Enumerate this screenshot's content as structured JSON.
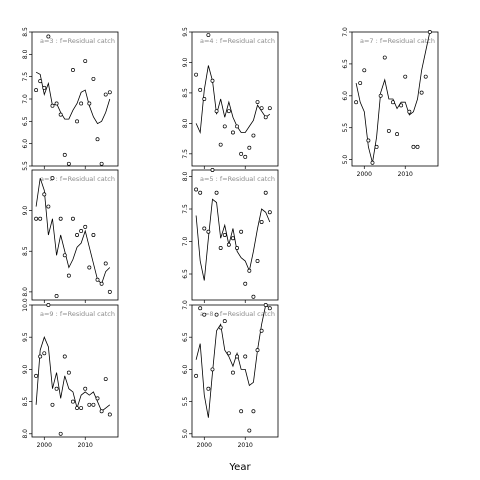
{
  "figure": {
    "xlabel": "Year"
  },
  "chart_data": {
    "type": "scatter",
    "xlabel": "Year",
    "xlim": [
      1997,
      2018
    ],
    "xticks": [
      2000,
      2010
    ],
    "panels": [
      {
        "label": "a=3 : f=Residual catch",
        "ylim": [
          5.5,
          8.5
        ],
        "yticks": [
          5.5,
          6.0,
          6.5,
          7.0,
          7.5,
          8.0,
          8.5
        ],
        "fitted": {
          "x": [
            1998,
            1999,
            2000,
            2001,
            2002,
            2003,
            2004,
            2005,
            2006,
            2007,
            2008,
            2009,
            2010,
            2011,
            2012,
            2013,
            2014,
            2015,
            2016
          ],
          "y": [
            7.6,
            7.55,
            7.1,
            7.35,
            6.85,
            6.9,
            6.7,
            6.55,
            6.55,
            6.75,
            6.9,
            7.15,
            7.2,
            6.85,
            6.6,
            6.45,
            6.5,
            6.7,
            7.0
          ]
        },
        "observed": {
          "x": [
            1998,
            1999,
            2000,
            2001,
            2002,
            2003,
            2004,
            2005,
            2006,
            2007,
            2008,
            2009,
            2010,
            2011,
            2012,
            2013,
            2014,
            2015,
            2016
          ],
          "y": [
            7.2,
            7.4,
            7.25,
            8.4,
            6.85,
            6.9,
            6.65,
            5.75,
            5.55,
            7.65,
            6.5,
            6.9,
            7.85,
            6.9,
            7.45,
            6.1,
            5.55,
            7.1,
            7.15
          ]
        }
      },
      {
        "label": "a=4 : f=Residual catch",
        "ylim": [
          7.3,
          9.5
        ],
        "yticks": [
          7.5,
          8.0,
          8.5,
          9.0,
          9.5
        ],
        "fitted": {
          "x": [
            1998,
            1999,
            2000,
            2001,
            2002,
            2003,
            2004,
            2005,
            2006,
            2007,
            2008,
            2009,
            2010,
            2011,
            2012,
            2013,
            2014,
            2015,
            2016
          ],
          "y": [
            8.0,
            7.85,
            8.55,
            8.95,
            8.7,
            8.15,
            8.4,
            8.1,
            8.35,
            8.1,
            7.95,
            7.85,
            7.85,
            7.95,
            8.05,
            8.3,
            8.2,
            8.1,
            8.15
          ]
        },
        "observed": {
          "x": [
            1998,
            1999,
            2000,
            2001,
            2002,
            2003,
            2004,
            2005,
            2006,
            2007,
            2008,
            2009,
            2010,
            2011,
            2012,
            2013,
            2014,
            2015,
            2016
          ],
          "y": [
            8.8,
            8.55,
            8.4,
            9.45,
            8.7,
            8.2,
            7.65,
            7.95,
            8.2,
            7.85,
            7.95,
            7.5,
            7.45,
            7.6,
            7.8,
            8.35,
            8.25,
            8.1,
            8.25
          ]
        }
      },
      {
        "label": "a=7 : f=Residual catch",
        "ylim": [
          4.9,
          7.0
        ],
        "yticks": [
          5.0,
          5.5,
          6.0,
          6.5,
          7.0
        ],
        "fitted": {
          "x": [
            1998,
            1999,
            2000,
            2001,
            2002,
            2003,
            2004,
            2005,
            2006,
            2007,
            2008,
            2009,
            2010,
            2011,
            2012,
            2013,
            2014,
            2015,
            2016
          ],
          "y": [
            6.2,
            5.9,
            5.75,
            5.2,
            4.95,
            5.35,
            6.05,
            6.25,
            5.95,
            5.95,
            5.8,
            5.9,
            5.9,
            5.7,
            5.75,
            5.95,
            6.4,
            6.7,
            7.0
          ]
        },
        "observed": {
          "x": [
            1998,
            1999,
            2000,
            2001,
            2002,
            2003,
            2004,
            2005,
            2006,
            2007,
            2008,
            2009,
            2010,
            2011,
            2012,
            2013,
            2014,
            2015,
            2016
          ],
          "y": [
            5.9,
            6.2,
            6.4,
            5.3,
            4.95,
            5.2,
            6.0,
            6.6,
            5.45,
            5.9,
            5.4,
            5.85,
            6.3,
            5.75,
            5.2,
            5.2,
            6.05,
            6.3,
            7.0
          ]
        }
      },
      {
        "label": "a=2 : f=Residual catch",
        "ylim": [
          7.9,
          9.5
        ],
        "yticks": [
          8.0,
          8.5,
          9.0
        ],
        "fitted": {
          "x": [
            1998,
            1999,
            2000,
            2001,
            2002,
            2003,
            2004,
            2005,
            2006,
            2007,
            2008,
            2009,
            2010,
            2011,
            2012,
            2013,
            2014,
            2015,
            2016
          ],
          "y": [
            9.05,
            9.4,
            9.25,
            8.7,
            8.9,
            8.45,
            8.7,
            8.5,
            8.3,
            8.4,
            8.55,
            8.6,
            8.75,
            8.55,
            8.35,
            8.15,
            8.1,
            8.25,
            8.3
          ]
        },
        "observed": {
          "x": [
            1998,
            1999,
            2000,
            2001,
            2002,
            2003,
            2004,
            2005,
            2006,
            2007,
            2008,
            2009,
            2010,
            2011,
            2012,
            2013,
            2014,
            2015,
            2016
          ],
          "y": [
            8.9,
            8.9,
            9.2,
            9.05,
            9.4,
            7.95,
            8.9,
            8.45,
            8.2,
            8.9,
            8.7,
            8.75,
            8.8,
            8.3,
            8.7,
            8.15,
            8.1,
            8.35,
            8.0
          ]
        }
      },
      {
        "label": "a=5 : f=Residual catch",
        "ylim": [
          6.1,
          8.1
        ],
        "yticks": [
          6.5,
          7.0,
          7.5,
          8.0
        ],
        "fitted": {
          "x": [
            1998,
            1999,
            2000,
            2001,
            2002,
            2003,
            2004,
            2005,
            2006,
            2007,
            2008,
            2009,
            2010,
            2011,
            2012,
            2013,
            2014,
            2015,
            2016
          ],
          "y": [
            7.4,
            6.7,
            6.4,
            7.05,
            7.65,
            7.6,
            7.05,
            7.25,
            6.95,
            7.2,
            6.85,
            6.75,
            6.7,
            6.55,
            6.85,
            7.2,
            7.5,
            7.45,
            7.3
          ]
        },
        "observed": {
          "x": [
            1998,
            1999,
            2000,
            2001,
            2002,
            2003,
            2004,
            2005,
            2006,
            2007,
            2008,
            2009,
            2010,
            2011,
            2012,
            2013,
            2014,
            2015,
            2016
          ],
          "y": [
            7.8,
            7.75,
            7.2,
            7.15,
            8.1,
            7.75,
            6.9,
            7.1,
            6.95,
            7.05,
            6.9,
            7.15,
            6.35,
            6.55,
            6.15,
            6.7,
            7.3,
            7.75,
            7.45
          ]
        }
      },
      {
        "label": "a=8 : f=Residual catch",
        "ylim": [
          4.95,
          7.0
        ],
        "yticks": [
          5.0,
          5.5,
          6.0,
          6.5,
          7.0
        ],
        "fitted": {
          "x": [
            1998,
            1999,
            2000,
            2001,
            2002,
            2003,
            2004,
            2005,
            2006,
            2007,
            2008,
            2009,
            2010,
            2011,
            2012,
            2013,
            2014,
            2015,
            2016
          ],
          "y": [
            6.15,
            6.4,
            5.6,
            5.25,
            5.95,
            6.6,
            6.7,
            6.3,
            6.2,
            6.05,
            6.25,
            6.0,
            6.0,
            5.75,
            5.8,
            6.3,
            6.7,
            7.0,
            6.95
          ]
        },
        "observed": {
          "x": [
            1998,
            1999,
            2000,
            2001,
            2002,
            2003,
            2004,
            2005,
            2006,
            2007,
            2008,
            2009,
            2010,
            2011,
            2012,
            2013,
            2014,
            2015,
            2016
          ],
          "y": [
            5.9,
            6.95,
            6.85,
            5.7,
            6.0,
            6.85,
            6.65,
            6.75,
            6.25,
            5.95,
            6.2,
            5.35,
            6.2,
            5.05,
            5.35,
            6.3,
            6.6,
            7.0,
            6.95
          ]
        }
      },
      {
        "label": "a=9 : f=Residual catch",
        "ylim": [
          7.95,
          10.0
        ],
        "yticks": [
          8.0,
          8.5,
          9.0,
          9.5,
          10.0
        ],
        "fitted": {
          "x": [
            1998,
            1999,
            2000,
            2001,
            2002,
            2003,
            2004,
            2005,
            2006,
            2007,
            2008,
            2009,
            2010,
            2011,
            2012,
            2013,
            2014,
            2015,
            2016
          ],
          "y": [
            8.45,
            9.3,
            9.5,
            9.35,
            8.7,
            8.95,
            8.55,
            8.9,
            8.7,
            8.65,
            8.4,
            8.6,
            8.65,
            8.6,
            8.65,
            8.5,
            8.35,
            8.4,
            8.45
          ]
        },
        "observed": {
          "x": [
            1998,
            1999,
            2000,
            2001,
            2002,
            2003,
            2004,
            2005,
            2006,
            2007,
            2008,
            2009,
            2010,
            2011,
            2012,
            2013,
            2014,
            2015,
            2016
          ],
          "y": [
            8.9,
            9.2,
            9.25,
            10.0,
            8.45,
            8.7,
            8.0,
            9.2,
            8.95,
            8.5,
            8.4,
            8.4,
            8.7,
            8.45,
            8.45,
            8.55,
            8.35,
            8.85,
            8.3
          ]
        }
      }
    ]
  }
}
